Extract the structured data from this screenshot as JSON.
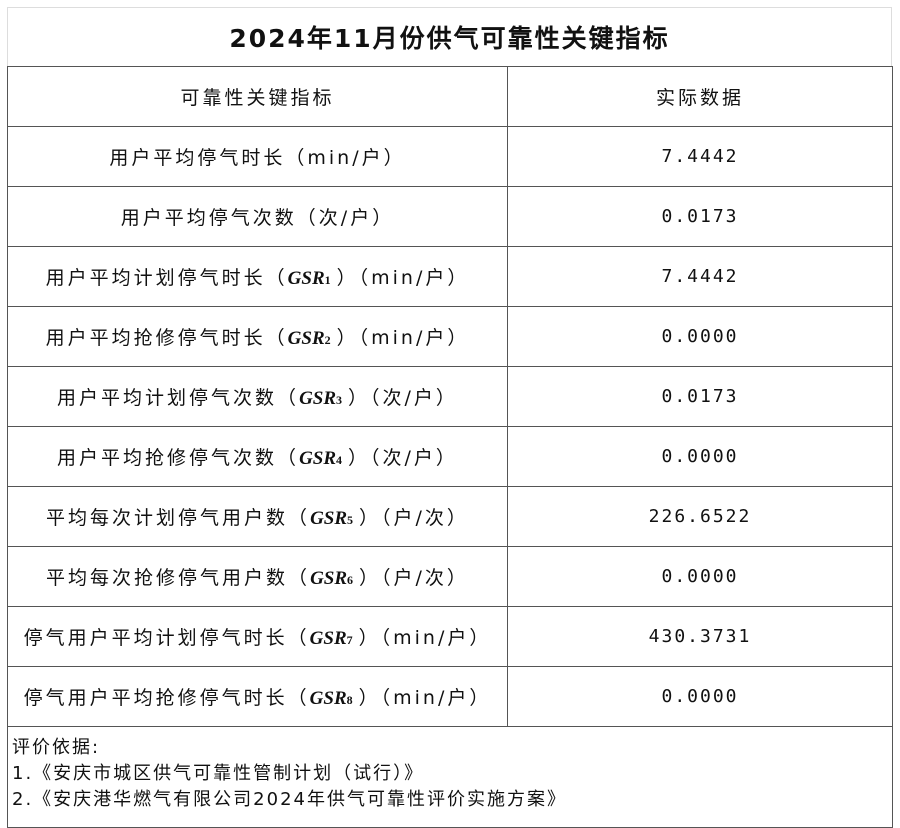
{
  "title": "2024年11月份供气可靠性关键指标",
  "header": {
    "col1": "可靠性关键指标",
    "col2": "实际数据"
  },
  "rows": [
    {
      "pre": "用户平均停气时长（min/户）",
      "gsr": "",
      "sub": "",
      "post": "",
      "value": "7.4442"
    },
    {
      "pre": "用户平均停气次数（次/户）",
      "gsr": "",
      "sub": "",
      "post": "",
      "value": "0.0173"
    },
    {
      "pre": "用户平均计划停气时长（",
      "gsr": "GSR",
      "sub": "1",
      "post": "）（min/户）",
      "value": "7.4442"
    },
    {
      "pre": "用户平均抢修停气时长（",
      "gsr": "GSR",
      "sub": "2",
      "post": "）（min/户）",
      "value": "0.0000"
    },
    {
      "pre": "用户平均计划停气次数（",
      "gsr": "GSR",
      "sub": "3",
      "post": "）（次/户）",
      "value": "0.0173"
    },
    {
      "pre": "用户平均抢修停气次数（",
      "gsr": "GSR",
      "sub": "4",
      "post": "）（次/户）",
      "value": "0.0000"
    },
    {
      "pre": "平均每次计划停气用户数（",
      "gsr": "GSR",
      "sub": "5",
      "post": "）（户/次）",
      "value": "226.6522"
    },
    {
      "pre": "平均每次抢修停气用户数（",
      "gsr": "GSR",
      "sub": "6",
      "post": "）（户/次）",
      "value": "0.0000"
    },
    {
      "pre": "停气用户平均计划停气时长（",
      "gsr": "GSR",
      "sub": "7",
      "post": "）（min/户）",
      "value": "430.3731"
    },
    {
      "pre": "停气用户平均抢修停气时长（",
      "gsr": "GSR",
      "sub": "8",
      "post": "）（min/户）",
      "value": "0.0000"
    }
  ],
  "footer": {
    "heading": "评价依据:",
    "items": [
      "1.《安庆市城区供气可靠性管制计划（试行）》",
      "2.《安庆港华燃气有限公司2024年供气可靠性评价实施方案》"
    ]
  }
}
